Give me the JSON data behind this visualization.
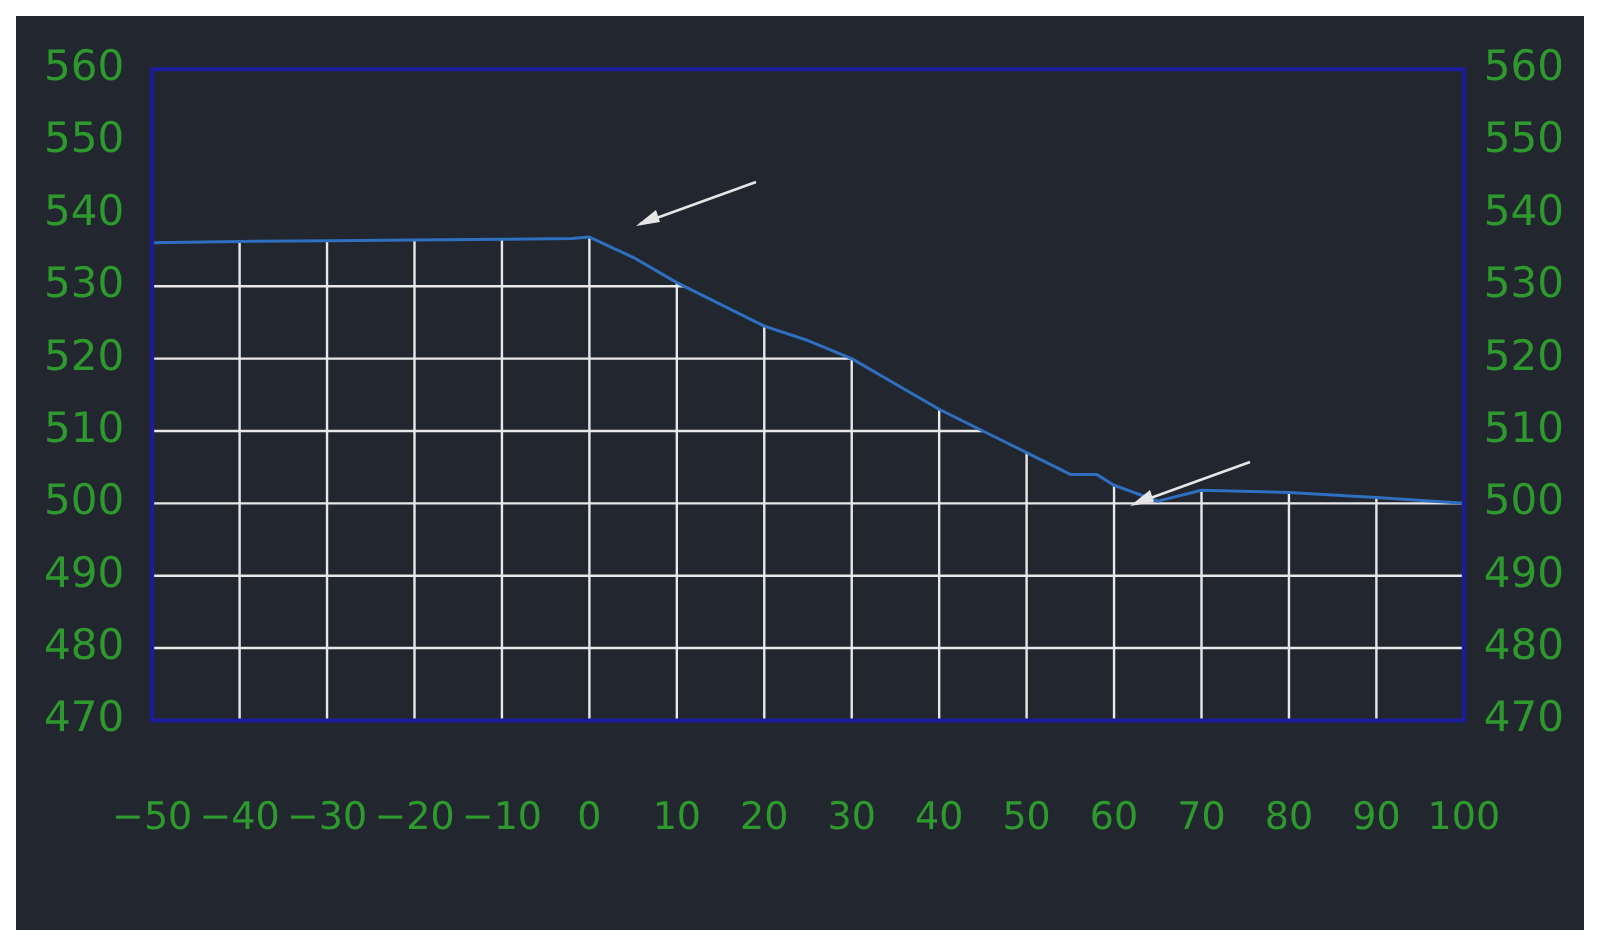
{
  "chart_data": {
    "type": "line",
    "x": [
      -50,
      -40,
      -30,
      -20,
      -10,
      -2,
      0,
      5,
      10,
      15,
      20,
      25,
      30,
      35,
      40,
      45,
      50,
      55,
      58,
      60,
      65,
      70,
      80,
      90,
      100
    ],
    "series": [
      {
        "color": "#2f6fc0",
        "values": [
          536,
          536.2,
          536.3,
          536.4,
          536.5,
          536.6,
          536.8,
          534,
          530.5,
          527.5,
          524.5,
          522.5,
          520,
          516.5,
          513,
          510,
          507,
          504,
          504,
          502.5,
          500.3,
          501.8,
          501.5,
          500.8,
          500
        ]
      }
    ],
    "xlim": [
      -50,
      100
    ],
    "xticks": [
      {
        "value": -50,
        "label": "−50"
      },
      {
        "value": -40,
        "label": "−40"
      },
      {
        "value": -30,
        "label": "−30"
      },
      {
        "value": -20,
        "label": "−20"
      },
      {
        "value": -10,
        "label": "−10"
      },
      0,
      10,
      20,
      30,
      40,
      50,
      60,
      70,
      80,
      90,
      100
    ],
    "ylim": [
      470,
      560
    ],
    "yticks": [
      470,
      480,
      490,
      500,
      510,
      520,
      530,
      540,
      550,
      560
    ],
    "y2lim": [
      470,
      560
    ],
    "y2ticks": [
      470,
      480,
      490,
      500,
      510,
      520,
      530,
      540,
      550,
      560
    ],
    "grid": true,
    "marker": "none",
    "line_style": "solid",
    "legend": false
  }
}
